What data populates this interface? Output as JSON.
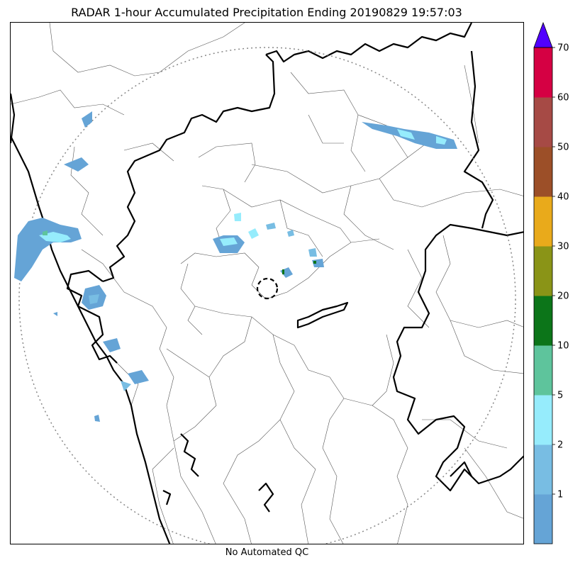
{
  "title": "RADAR 1-hour Accumulated Precipitation Ending 20190829 19:57:03",
  "footer": "No Automated QC",
  "colorbar": {
    "bins": [
      {
        "from": 0,
        "to": 1,
        "color": "#65a4d6"
      },
      {
        "from": 1,
        "to": 2,
        "color": "#78bde3"
      },
      {
        "from": 2,
        "to": 5,
        "color": "#96ecfc"
      },
      {
        "from": 5,
        "to": 10,
        "color": "#5ec49c"
      },
      {
        "from": 10,
        "to": 20,
        "color": "#0c7519"
      },
      {
        "from": 20,
        "to": 30,
        "color": "#8a9417"
      },
      {
        "from": 30,
        "to": 40,
        "color": "#e9aa1b"
      },
      {
        "from": 40,
        "to": 50,
        "color": "#9c4f28"
      },
      {
        "from": 50,
        "to": 60,
        "color": "#a64a45"
      },
      {
        "from": 60,
        "to": 70,
        "color": "#d50043"
      }
    ],
    "tick_labels": [
      "1",
      "2",
      "5",
      "10",
      "20",
      "30",
      "40",
      "50",
      "60",
      "70"
    ],
    "overflow_color": "#5100ff"
  }
}
